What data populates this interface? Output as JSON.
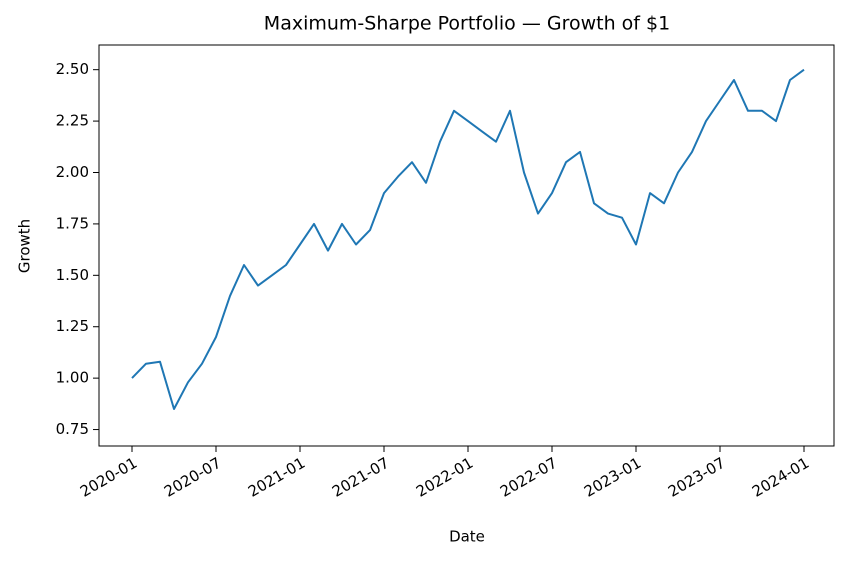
{
  "chart_data": {
    "type": "line",
    "title": "Maximum-Sharpe Portfolio — Growth of $1",
    "x_label": "Date",
    "y_label": "Growth",
    "x": [
      "2020-01",
      "2020-02",
      "2020-03",
      "2020-04",
      "2020-05",
      "2020-06",
      "2020-07",
      "2020-08",
      "2020-09",
      "2020-10",
      "2020-11",
      "2020-12",
      "2021-01",
      "2021-02",
      "2021-03",
      "2021-04",
      "2021-05",
      "2021-06",
      "2021-07",
      "2021-08",
      "2021-09",
      "2021-10",
      "2021-11",
      "2021-12",
      "2022-01",
      "2022-02",
      "2022-03",
      "2022-04",
      "2022-05",
      "2022-06",
      "2022-07",
      "2022-08",
      "2022-09",
      "2022-10",
      "2022-11",
      "2022-12",
      "2023-01",
      "2023-02",
      "2023-03",
      "2023-04",
      "2023-05",
      "2023-06",
      "2023-07",
      "2023-08",
      "2023-09",
      "2023-10",
      "2023-11",
      "2023-12",
      "2024-01"
    ],
    "series": [
      {
        "name": "Growth",
        "color": "#1f77b4",
        "values": [
          1.0,
          1.07,
          1.08,
          0.85,
          0.98,
          1.07,
          1.2,
          1.4,
          1.55,
          1.45,
          1.5,
          1.55,
          1.65,
          1.75,
          1.62,
          1.75,
          1.65,
          1.72,
          1.9,
          1.98,
          2.05,
          1.95,
          2.15,
          2.3,
          2.25,
          2.2,
          2.15,
          2.3,
          2.0,
          1.8,
          1.9,
          2.05,
          2.1,
          1.85,
          1.8,
          1.78,
          1.65,
          1.9,
          1.85,
          2.0,
          2.1,
          2.25,
          2.35,
          2.45,
          2.3,
          2.3,
          2.25,
          2.45,
          2.5
        ]
      }
    ],
    "xlim": [
      "2020-01",
      "2024-01"
    ],
    "xticks": [
      "2020-01",
      "2020-07",
      "2021-01",
      "2021-07",
      "2022-01",
      "2022-07",
      "2023-01",
      "2023-07",
      "2024-01"
    ],
    "ylim": [
      0.67,
      2.62
    ],
    "yticks": [
      {
        "value": 0.75,
        "label": "0.75"
      },
      {
        "value": 1.0,
        "label": "1.00"
      },
      {
        "value": 1.25,
        "label": "1.25"
      },
      {
        "value": 1.5,
        "label": "1.50"
      },
      {
        "value": 1.75,
        "label": "1.75"
      },
      {
        "value": 2.0,
        "label": "2.00"
      },
      {
        "value": 2.25,
        "label": "2.25"
      },
      {
        "value": 2.5,
        "label": "2.50"
      }
    ],
    "grid": false
  }
}
